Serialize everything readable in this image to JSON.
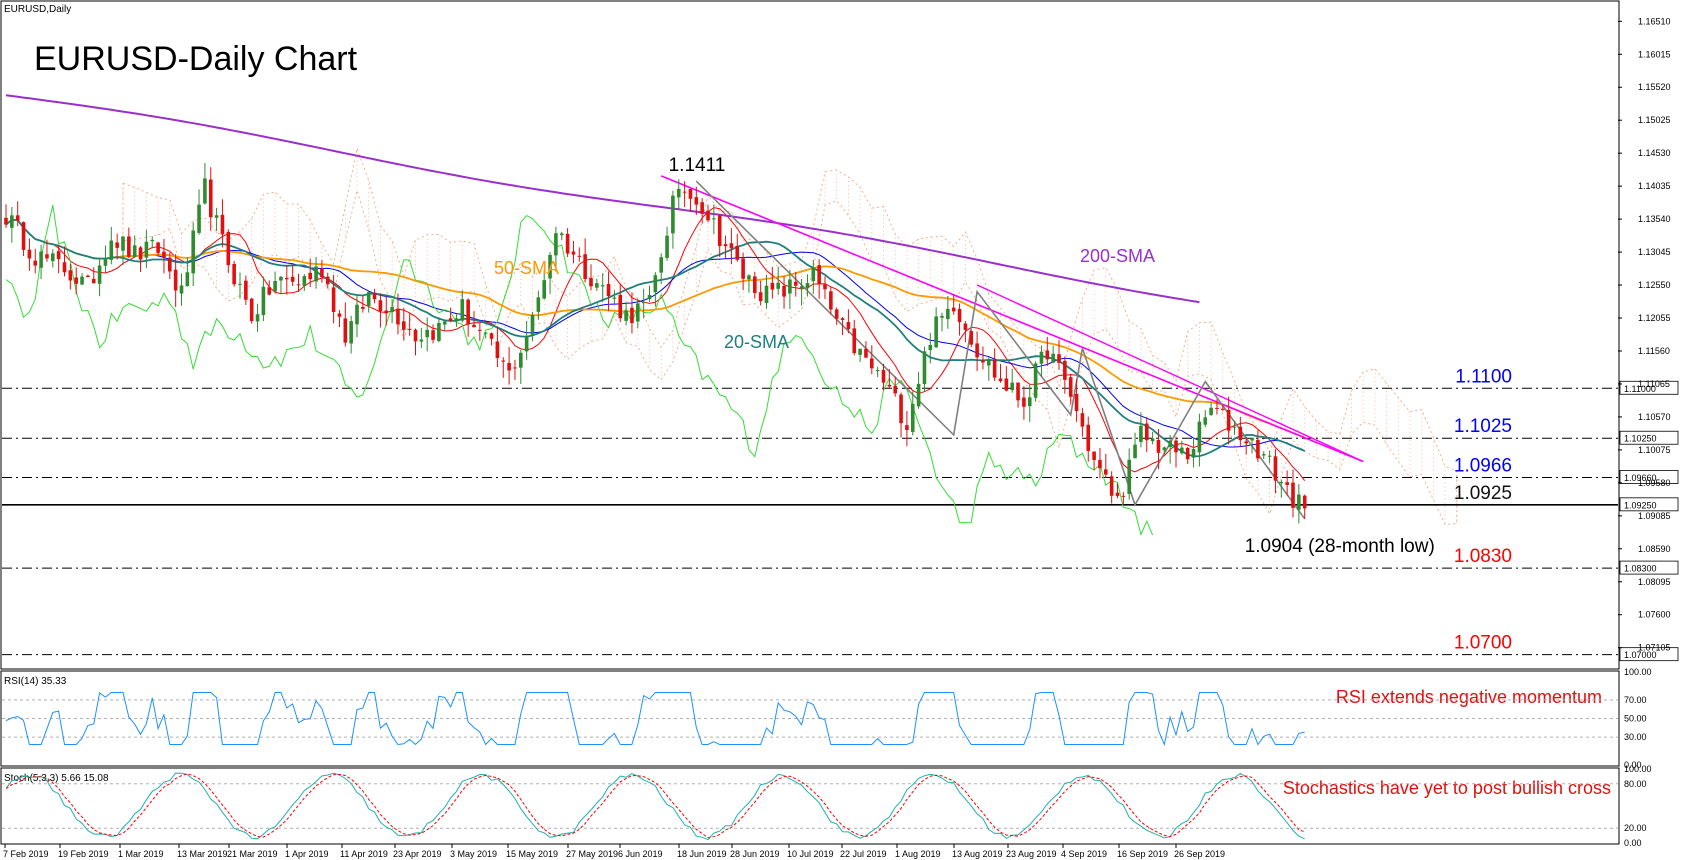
{
  "window": {
    "symbol_label": "EURUSD,Daily",
    "title": "EURUSD-Daily Chart"
  },
  "colors": {
    "bull_candle": "#2e8b2e",
    "bear_candle": "#e01010",
    "sma20": "#1f7f7f",
    "sma50": "#ff9900",
    "sma200": "#9a2fcc",
    "tenkan": "#ff0000",
    "kijun": "#0000ff",
    "chikou": "#33dd33",
    "cloud": "#f0b090",
    "trendline": "#ff00ff",
    "wave": "#808080",
    "rsi": "#1e90ff",
    "stoch_main": "#20b2aa",
    "stoch_signal": "#ff0000"
  },
  "chart_data": {
    "type": "candlestick",
    "price_range": [
      1.068,
      1.168
    ],
    "price_axis_ticks": [
      "1.16510",
      "1.16015",
      "1.15520",
      "1.15025",
      "1.14530",
      "1.14035",
      "1.13540",
      "1.13045",
      "1.12550",
      "1.12055",
      "1.11560",
      "1.11065",
      "1.10570",
      "1.10075",
      "1.09580",
      "1.09085",
      "1.08590",
      "1.08095",
      "1.07600",
      "1.07105"
    ],
    "x_axis_labels": [
      "7 Feb 2019",
      "19 Feb 2019",
      "1 Mar 2019",
      "13 Mar 2019",
      "21 Mar 2019",
      "1 Apr 2019",
      "11 Apr 2019",
      "23 Apr 2019",
      "3 May 2019",
      "15 May 2019",
      "27 May 2019",
      "6 Jun 2019",
      "18 Jun 2019",
      "28 Jun 2019",
      "10 Jul 2019",
      "22 Jul 2019",
      "1 Aug 2019",
      "13 Aug 2019",
      "23 Aug 2019",
      "4 Sep 2019",
      "16 Sep 2019",
      "26 Sep 2019"
    ],
    "close_keypoints": [
      [
        0,
        1.136
      ],
      [
        5,
        1.13
      ],
      [
        10,
        1.128
      ],
      [
        14,
        1.125
      ],
      [
        18,
        1.133
      ],
      [
        22,
        1.13
      ],
      [
        26,
        1.131
      ],
      [
        30,
        1.124
      ],
      [
        34,
        1.14
      ],
      [
        38,
        1.129
      ],
      [
        42,
        1.121
      ],
      [
        46,
        1.126
      ],
      [
        50,
        1.126
      ],
      [
        54,
        1.128
      ],
      [
        58,
        1.118
      ],
      [
        62,
        1.124
      ],
      [
        66,
        1.122
      ],
      [
        70,
        1.118
      ],
      [
        74,
        1.119
      ],
      [
        78,
        1.122
      ],
      [
        82,
        1.117
      ],
      [
        86,
        1.112
      ],
      [
        90,
        1.12
      ],
      [
        94,
        1.134
      ],
      [
        98,
        1.129
      ],
      [
        102,
        1.125
      ],
      [
        106,
        1.121
      ],
      [
        110,
        1.1225
      ],
      [
        114,
        1.138
      ],
      [
        118,
        1.139
      ],
      [
        122,
        1.133
      ],
      [
        126,
        1.127
      ],
      [
        130,
        1.124
      ],
      [
        134,
        1.125
      ],
      [
        138,
        1.127
      ],
      [
        142,
        1.12
      ],
      [
        146,
        1.115
      ],
      [
        150,
        1.111
      ],
      [
        154,
        1.105
      ],
      [
        158,
        1.118
      ],
      [
        162,
        1.123
      ],
      [
        166,
        1.116
      ],
      [
        170,
        1.111
      ],
      [
        174,
        1.108
      ],
      [
        178,
        1.116
      ],
      [
        182,
        1.109
      ],
      [
        186,
        1.099
      ],
      [
        190,
        1.093
      ],
      [
        194,
        1.103
      ],
      [
        198,
        1.101
      ],
      [
        202,
        1.1
      ],
      [
        206,
        1.107
      ],
      [
        210,
        1.104
      ],
      [
        214,
        1.101
      ],
      [
        218,
        1.096
      ],
      [
        222,
        1.0912
      ]
    ],
    "moving_averages": [
      {
        "name": "20-SMA"
      },
      {
        "name": "50-SMA"
      },
      {
        "name": "200-SMA"
      }
    ],
    "swing_high": {
      "label": "1.1411",
      "value": 1.1411,
      "index": 116
    },
    "swing_low": {
      "label": "1.0904 (28-month low)",
      "value": 1.0904,
      "index": 222
    },
    "levels": [
      {
        "label": "1.1100",
        "value": 1.11,
        "axis_box": "1.11000",
        "color": "#0000ff"
      },
      {
        "label": "1.1025",
        "value": 1.1025,
        "axis_box": "1.10250",
        "color": "#0000ff"
      },
      {
        "label": "1.0966",
        "value": 1.0966,
        "axis_box": "1.09660",
        "color": "#0000ff"
      },
      {
        "label": "1.0925",
        "value": 1.0925,
        "axis_box": "1.09250",
        "color": "#111111"
      },
      {
        "label": "1.0830",
        "value": 1.083,
        "axis_box": "1.08300",
        "color": "#ff0000"
      },
      {
        "label": "1.0700",
        "value": 1.07,
        "axis_box": "1.07000",
        "color": "#ff0000"
      }
    ],
    "rsi": {
      "header": "RSI(14) 35.33",
      "value": 35.33,
      "axis_ticks": [
        "100.00",
        "70.00",
        "50.00",
        "30.00",
        "0.00"
      ],
      "annotation": "RSI extends negative momentum"
    },
    "stochastic": {
      "header": "Stoch(5,3,3) 5.66 15.08",
      "main": 5.66,
      "signal": 15.08,
      "axis_ticks": [
        "100.00",
        "80.00",
        "20.00",
        "0.00"
      ],
      "annotation": "Stochastics have yet to post bullish cross"
    }
  }
}
